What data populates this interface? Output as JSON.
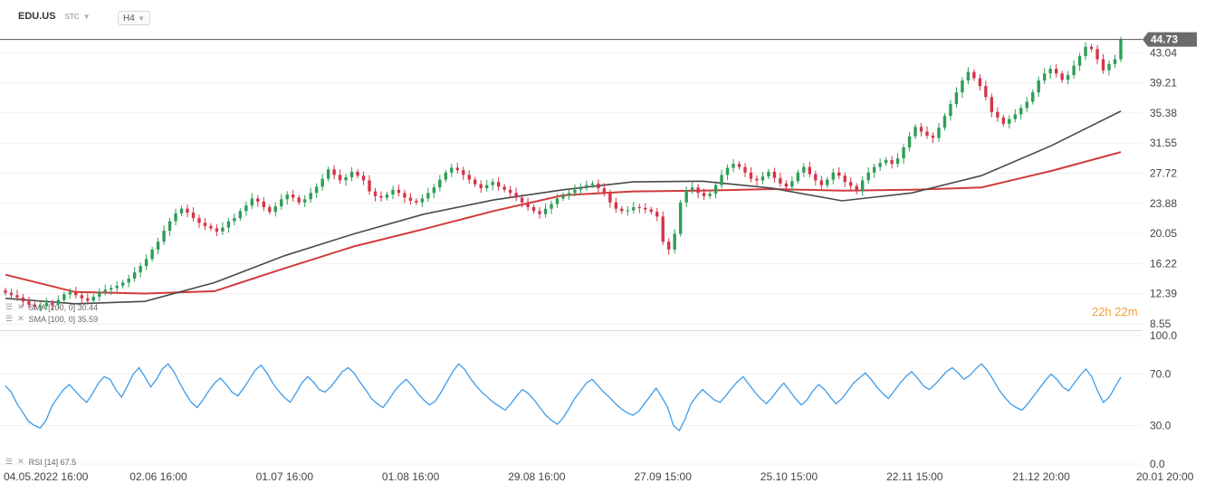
{
  "header": {
    "ticker": "EDU.US",
    "market": "STC",
    "timeframe": "H4"
  },
  "legend": {
    "sma200": "SMA [200, 0] 30.44",
    "sma100": "SMA [100, 0] 35.59",
    "rsi": "RSI [14] 67.5"
  },
  "timer": "22h 22m",
  "chart_data": [
    {
      "type": "candlestick",
      "title": "EDU.US",
      "ylim": [
        8.55,
        46.87
      ],
      "y_ticks": [
        43.04,
        39.21,
        35.38,
        31.55,
        27.72,
        23.88,
        20.05,
        16.22,
        12.39,
        8.55
      ],
      "last_price": 44.73,
      "x_labels": [
        "04.05.2022 16:00",
        "02.06 16:00",
        "01.07 16:00",
        "01.08 16:00",
        "29.08 16:00",
        "27.09 15:00",
        "25.10 15:00",
        "22.11 15:00",
        "21.12 20:00",
        "20.01 20:00"
      ],
      "colors": {
        "up": "#2e9e57",
        "down": "#d6344a",
        "sma200": "#d03b3b",
        "sma100": "#4a4a4a",
        "price_line": "#555555",
        "price_tag": "#6b6b6b"
      },
      "close": [
        12.5,
        12.2,
        11.9,
        11.4,
        11.0,
        10.7,
        10.8,
        11.2,
        11.0,
        11.6,
        12.3,
        12.6,
        12.2,
        11.8,
        11.5,
        12.0,
        12.6,
        12.9,
        13.1,
        13.4,
        13.8,
        14.3,
        15.1,
        15.9,
        16.8,
        18.0,
        19.0,
        20.4,
        21.6,
        22.6,
        23.2,
        22.7,
        22.0,
        21.4,
        21.0,
        20.7,
        20.3,
        20.8,
        21.6,
        22.0,
        22.9,
        23.6,
        24.5,
        24.1,
        23.4,
        22.8,
        23.5,
        24.4,
        25.0,
        24.6,
        24.0,
        24.4,
        25.2,
        26.0,
        27.0,
        28.2,
        27.5,
        26.8,
        27.2,
        27.9,
        27.4,
        26.8,
        25.4,
        24.8,
        24.6,
        25.0,
        25.6,
        25.2,
        24.6,
        24.2,
        24.0,
        24.5,
        25.2,
        25.9,
        26.9,
        27.8,
        28.4,
        28.1,
        27.5,
        26.9,
        26.3,
        25.8,
        26.2,
        26.6,
        26.0,
        25.6,
        25.2,
        24.6,
        24.0,
        23.4,
        22.9,
        22.5,
        23.2,
        23.8,
        24.5,
        24.9,
        25.2,
        25.6,
        26.0,
        26.2,
        26.4,
        25.8,
        25.2,
        24.0,
        23.2,
        22.9,
        23.0,
        23.4,
        23.3,
        23.1,
        22.8,
        22.2,
        19.0,
        18.0,
        20.0,
        24.0,
        25.5,
        25.9,
        25.2,
        24.8,
        25.1,
        26.2,
        27.5,
        28.4,
        28.9,
        28.5,
        27.8,
        27.0,
        26.8,
        27.3,
        27.9,
        27.1,
        26.4,
        26.0,
        26.7,
        27.8,
        28.5,
        27.6,
        26.8,
        26.2,
        26.9,
        27.8,
        27.4,
        26.6,
        26.1,
        25.4,
        26.8,
        27.8,
        28.5,
        29.0,
        29.4,
        28.9,
        29.6,
        31.0,
        32.4,
        33.6,
        33.0,
        32.5,
        32.2,
        33.5,
        35.0,
        36.5,
        38.0,
        39.5,
        40.6,
        39.8,
        38.8,
        37.4,
        35.5,
        34.8,
        34.0,
        34.6,
        35.2,
        36.0,
        36.8,
        38.0,
        39.5,
        40.4,
        41.0,
        40.4,
        39.6,
        40.2,
        41.4,
        42.6,
        43.8,
        43.5,
        42.2,
        40.8,
        41.6,
        42.2,
        44.73
      ],
      "sma200": [
        14.8,
        12.6,
        12.4,
        12.7,
        15.6,
        18.4,
        20.6,
        22.9,
        24.9,
        25.4,
        25.5,
        25.7,
        25.5,
        25.6,
        25.9,
        28.0,
        30.4
      ],
      "sma100": [
        11.8,
        11.1,
        11.4,
        13.8,
        17.2,
        20.0,
        22.5,
        24.3,
        25.6,
        26.6,
        26.7,
        25.8,
        24.2,
        25.2,
        27.4,
        31.2,
        35.6
      ]
    },
    {
      "type": "line",
      "title": "RSI [14] 67.5",
      "ylim": [
        0,
        100
      ],
      "y_ticks": [
        100.0,
        70.0,
        30.0,
        0.0
      ],
      "color": "#3d9be9",
      "values": [
        61,
        56,
        47,
        40,
        33,
        30,
        28,
        34,
        45,
        52,
        58,
        62,
        57,
        52,
        48,
        55,
        63,
        68,
        66,
        58,
        52,
        61,
        70,
        75,
        68,
        60,
        66,
        74,
        78,
        72,
        63,
        55,
        48,
        44,
        50,
        57,
        63,
        67,
        62,
        56,
        53,
        59,
        66,
        73,
        77,
        71,
        63,
        57,
        52,
        48,
        55,
        63,
        68,
        64,
        58,
        56,
        60,
        66,
        72,
        75,
        71,
        64,
        58,
        51,
        47,
        44,
        50,
        57,
        62,
        66,
        61,
        55,
        50,
        46,
        49,
        56,
        64,
        72,
        78,
        74,
        67,
        61,
        56,
        52,
        48,
        45,
        42,
        47,
        53,
        58,
        55,
        50,
        44,
        38,
        34,
        31,
        36,
        43,
        51,
        57,
        63,
        66,
        61,
        56,
        52,
        47,
        43,
        40,
        38,
        41,
        47,
        53,
        59,
        52,
        44,
        30,
        26,
        35,
        47,
        53,
        58,
        54,
        50,
        48,
        53,
        59,
        64,
        68,
        62,
        56,
        51,
        47,
        52,
        58,
        63,
        57,
        51,
        46,
        50,
        57,
        62,
        58,
        52,
        47,
        51,
        57,
        63,
        67,
        71,
        66,
        60,
        55,
        51,
        57,
        63,
        68,
        72,
        67,
        61,
        58,
        62,
        67,
        72,
        75,
        71,
        66,
        69,
        74,
        78,
        73,
        66,
        58,
        52,
        47,
        44,
        42,
        47,
        53,
        59,
        65,
        70,
        66,
        60,
        57,
        63,
        69,
        74,
        68,
        57,
        48,
        52,
        60,
        67.5
      ]
    }
  ]
}
